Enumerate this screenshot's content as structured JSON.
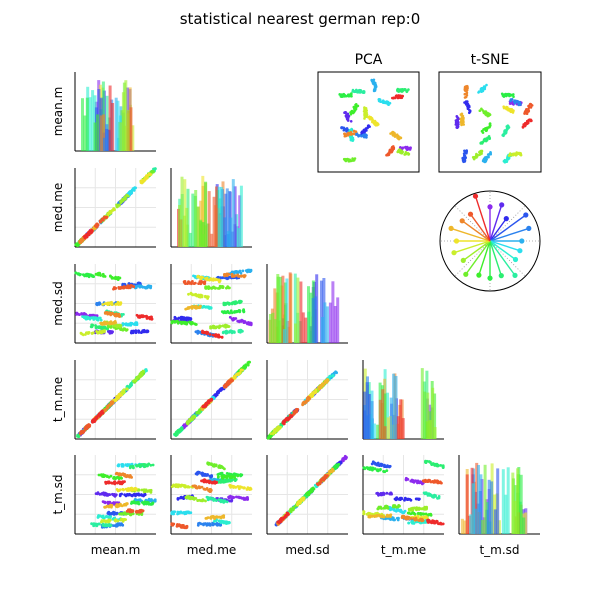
{
  "chart_data": {
    "type": "scatter",
    "title": "statistical nearest german rep:0",
    "variables": [
      "mean.m",
      "med.me",
      "med.sd",
      "t_m.me",
      "t_m.sd"
    ],
    "grid": true,
    "n_clusters": 20,
    "panels": {
      "diagonal": "histogram",
      "lower_triangle": "scatter",
      "pca": {
        "title": "PCA"
      },
      "tsne": {
        "title": "t-SNE"
      },
      "polar": {
        "type": "radial-lollipop",
        "n_spokes": 20
      }
    }
  }
}
